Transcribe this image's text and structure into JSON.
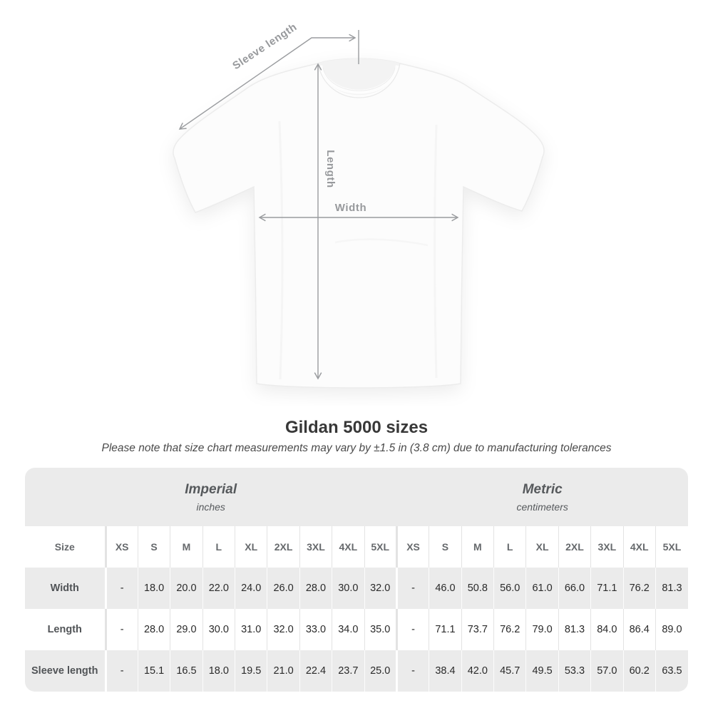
{
  "diagram": {
    "sleeve_length_label": "Sleeve length",
    "length_label": "Length",
    "width_label": "Width"
  },
  "title": "Gildan 5000 sizes",
  "subtitle": "Please note that size chart measurements may vary by ±1.5 in (3.8 cm) due to manufacturing tolerances",
  "table": {
    "unit_groups": [
      {
        "label": "Imperial",
        "sublabel": "inches"
      },
      {
        "label": "Metric",
        "sublabel": "centimeters"
      }
    ],
    "size_header": "Size",
    "sizes": [
      "XS",
      "S",
      "M",
      "L",
      "XL",
      "2XL",
      "3XL",
      "4XL",
      "5XL"
    ],
    "rows": [
      {
        "label": "Width",
        "imperial": [
          "-",
          "18.0",
          "20.0",
          "22.0",
          "24.0",
          "26.0",
          "28.0",
          "30.0",
          "32.0"
        ],
        "metric": [
          "-",
          "46.0",
          "50.8",
          "56.0",
          "61.0",
          "66.0",
          "71.1",
          "76.2",
          "81.3"
        ]
      },
      {
        "label": "Length",
        "imperial": [
          "-",
          "28.0",
          "29.0",
          "30.0",
          "31.0",
          "32.0",
          "33.0",
          "34.0",
          "35.0"
        ],
        "metric": [
          "-",
          "71.1",
          "73.7",
          "76.2",
          "79.0",
          "81.3",
          "84.0",
          "86.4",
          "89.0"
        ]
      },
      {
        "label": "Sleeve length",
        "imperial": [
          "-",
          "15.1",
          "16.5",
          "18.0",
          "19.5",
          "21.0",
          "22.4",
          "23.7",
          "25.0"
        ],
        "metric": [
          "-",
          "38.4",
          "42.0",
          "45.7",
          "49.5",
          "53.3",
          "57.0",
          "60.2",
          "63.5"
        ]
      }
    ]
  },
  "colors": {
    "header_band": "#ebebeb",
    "row_stripe": "#ebebeb",
    "arrow_gray": "#9a9c9f",
    "title_text": "#383838"
  }
}
